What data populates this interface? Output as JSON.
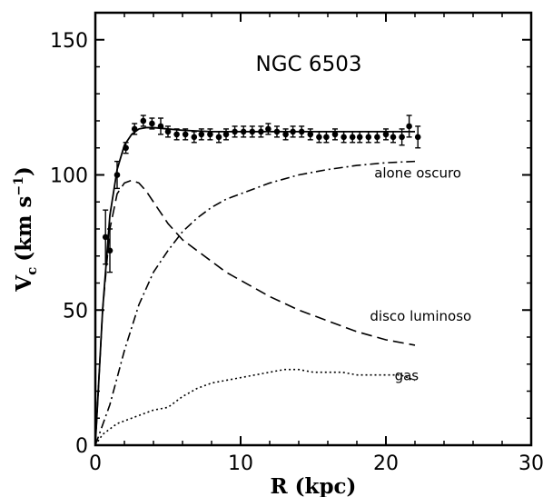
{
  "chart_data": {
    "type": "line",
    "title": "NGC 6503",
    "xlabel": "R (kpc)",
    "ylabel": "V",
    "ylabel_sub": "c",
    "ylabel_units": "(km s",
    "ylabel_sup": "−1",
    "ylabel_close": ")",
    "xlim": [
      0,
      30
    ],
    "ylim": [
      0,
      160
    ],
    "xticks": [
      0,
      10,
      20,
      30
    ],
    "yticks": [
      0,
      50,
      100,
      150
    ],
    "grid": false,
    "legend": "none",
    "series": [
      {
        "style": "points-with-errorbars",
        "x": [
          0.7,
          1.0,
          1.5,
          2.1,
          2.7,
          3.3,
          3.9,
          4.5,
          5.0,
          5.6,
          6.2,
          6.8,
          7.3,
          7.9,
          8.5,
          9.0,
          9.6,
          10.2,
          10.8,
          11.4,
          11.9,
          12.5,
          13.1,
          13.6,
          14.2,
          14.8,
          15.4,
          15.9,
          16.5,
          17.1,
          17.7,
          18.2,
          18.8,
          19.4,
          20.0,
          20.5,
          21.1,
          21.6,
          22.2
        ],
        "y": [
          77,
          72,
          100,
          110,
          117,
          120,
          119,
          118,
          116,
          115,
          115,
          114,
          115,
          115,
          114,
          115,
          116,
          116,
          116,
          116,
          117,
          116,
          115,
          116,
          116,
          115,
          114,
          114,
          115,
          114,
          114,
          114,
          114,
          114,
          115,
          114,
          114,
          118,
          114
        ],
        "err": [
          10,
          8,
          5,
          2,
          2,
          2,
          2,
          3,
          2,
          2,
          2,
          2,
          2,
          2,
          2,
          2,
          2,
          2,
          2,
          2,
          2,
          2,
          2,
          2,
          2,
          2,
          2,
          2,
          2,
          2,
          2,
          2,
          2,
          2,
          2,
          2,
          3,
          4,
          4
        ]
      },
      {
        "style": "solid",
        "x": [
          0,
          0.5,
          1.0,
          1.5,
          2.0,
          2.5,
          3.0,
          3.5,
          4.0,
          5.0,
          6.0,
          8.0,
          10.0,
          12.0,
          14.0,
          16.0,
          18.0,
          20.0,
          22.0
        ],
        "y": [
          0,
          50,
          85,
          102,
          111,
          115,
          117,
          117.5,
          117.5,
          117,
          116.5,
          116,
          116,
          116,
          116,
          116,
          116,
          116,
          116
        ]
      },
      {
        "style": "dashed",
        "label": "disco luminoso",
        "x": [
          0,
          0.5,
          1.0,
          1.5,
          2.0,
          2.5,
          3.0,
          3.5,
          4.0,
          5.0,
          6.0,
          7.0,
          8.0,
          9.0,
          10.0,
          12.0,
          14.0,
          16.0,
          18.0,
          20.0,
          22.0
        ],
        "y": [
          0,
          50,
          80,
          93,
          97,
          98,
          97,
          94,
          90,
          82,
          76,
          72,
          68,
          64,
          61,
          55,
          50,
          46,
          42,
          39,
          37
        ]
      },
      {
        "style": "dash-dot",
        "label": "alone oscuro",
        "x": [
          0,
          1.0,
          2.0,
          3.0,
          4.0,
          5.0,
          6.0,
          7.0,
          8.0,
          9.0,
          10.0,
          12.0,
          14.0,
          16.0,
          18.0,
          20.0,
          22.0
        ],
        "y": [
          0,
          15,
          35,
          52,
          64,
          72,
          79,
          84,
          88,
          91,
          93,
          97,
          100,
          102,
          103.5,
          104.5,
          105
        ]
      },
      {
        "style": "dotted",
        "label": "gas",
        "x": [
          0,
          0.5,
          1.0,
          1.5,
          2.0,
          3.0,
          4.0,
          5.0,
          6.0,
          7.0,
          8.0,
          9.0,
          10.0,
          11.0,
          12.0,
          13.0,
          14.0,
          15.0,
          16.0,
          17.0,
          18.0,
          19.0,
          20.0,
          21.0,
          22.0
        ],
        "y": [
          0,
          4,
          6,
          8,
          9,
          11,
          13,
          14,
          18,
          21,
          23,
          24,
          25,
          26,
          27,
          28,
          28,
          27,
          27,
          27,
          26,
          26,
          26,
          26,
          24
        ]
      }
    ],
    "annotations": [
      {
        "text": "alone oscuro",
        "x": 19.2,
        "y": 99
      },
      {
        "text": "disco luminoso",
        "x": 18.9,
        "y": 46
      },
      {
        "text": "gas",
        "x": 20.6,
        "y": 24
      }
    ]
  }
}
